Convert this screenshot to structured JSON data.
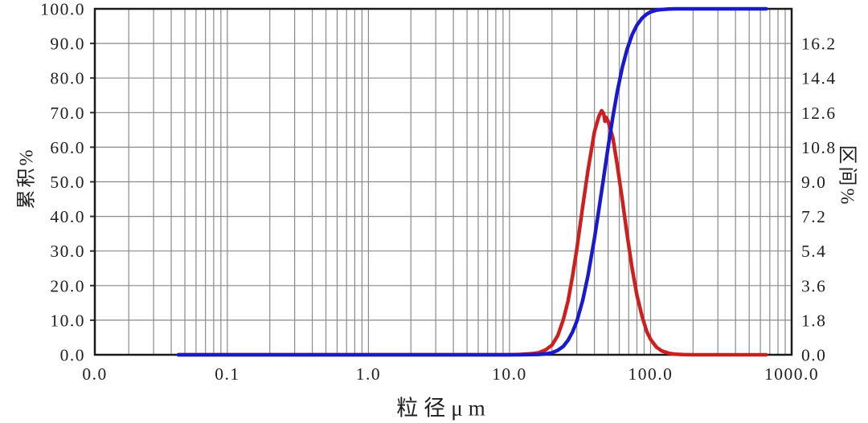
{
  "page": {
    "background": "#ffffff"
  },
  "chart_data": {
    "type": "line",
    "title": "",
    "xlabel": "粒径μm",
    "ylabel_left": "累积%",
    "ylabel_right": "区间%",
    "grid": true,
    "legend": "none",
    "x_axis": {
      "scale": "log",
      "min": 0.0115,
      "max": 1000,
      "tick_labels": [
        "0.0",
        "0.1",
        "1.0",
        "10.0",
        "100.0",
        "1000.0"
      ],
      "tick_values": [
        0.0115,
        0.1,
        1,
        10,
        100,
        1000
      ]
    },
    "y_left_axis": {
      "min": 0,
      "max": 100,
      "tick_labels": [
        "0.0",
        "10.0",
        "20.0",
        "30.0",
        "40.0",
        "50.0",
        "60.0",
        "70.0",
        "80.0",
        "90.0",
        "100.0"
      ],
      "tick_values": [
        0,
        10,
        20,
        30,
        40,
        50,
        60,
        70,
        80,
        90,
        100
      ]
    },
    "y_right_axis": {
      "min": 0,
      "max": 18,
      "tick_labels": [
        "0.0",
        "1.8",
        "3.6",
        "5.4",
        "7.2",
        "9.0",
        "10.8",
        "12.6",
        "14.4",
        "16.2"
      ],
      "tick_values": [
        0,
        1.8,
        3.6,
        5.4,
        7.2,
        9.0,
        10.8,
        12.6,
        14.4,
        16.2
      ]
    },
    "colors": {
      "grid": "#8a8a8a",
      "border": "#1a1a1a",
      "tick_text": "#1f1f1f"
    },
    "series": [
      {
        "name": "区间%",
        "role": "interval",
        "axis": "right",
        "color": "#cc2020",
        "points": [
          [
            0.045,
            0
          ],
          [
            0.1,
            0
          ],
          [
            0.5,
            0
          ],
          [
            1,
            0
          ],
          [
            2,
            0
          ],
          [
            5,
            0
          ],
          [
            8,
            0
          ],
          [
            10,
            0
          ],
          [
            12,
            0.02
          ],
          [
            14,
            0.05
          ],
          [
            16,
            0.1
          ],
          [
            18,
            0.25
          ],
          [
            20,
            0.5
          ],
          [
            22,
            1.0
          ],
          [
            24,
            1.8
          ],
          [
            26,
            2.8
          ],
          [
            28,
            4.1
          ],
          [
            30,
            5.5
          ],
          [
            33,
            7.7
          ],
          [
            36,
            9.6
          ],
          [
            40,
            11.6
          ],
          [
            43,
            12.4
          ],
          [
            45,
            12.7
          ],
          [
            46.5,
            12.55
          ],
          [
            47.5,
            12.15
          ],
          [
            48.5,
            12.35
          ],
          [
            50,
            12.15
          ],
          [
            54,
            11.3
          ],
          [
            58,
            9.9
          ],
          [
            63,
            8.1
          ],
          [
            68,
            6.3
          ],
          [
            74,
            4.5
          ],
          [
            80,
            3.1
          ],
          [
            87,
            2.0
          ],
          [
            94,
            1.2
          ],
          [
            100,
            0.8
          ],
          [
            110,
            0.4
          ],
          [
            120,
            0.2
          ],
          [
            135,
            0.08
          ],
          [
            150,
            0.03
          ],
          [
            170,
            0.01
          ],
          [
            200,
            0
          ],
          [
            300,
            0
          ],
          [
            450,
            0
          ],
          [
            660,
            0
          ]
        ]
      },
      {
        "name": "累积%",
        "role": "cumulative",
        "axis": "left",
        "color": "#1a1acc",
        "points": [
          [
            0.045,
            0
          ],
          [
            0.06,
            0
          ],
          [
            0.1,
            0
          ],
          [
            0.2,
            0
          ],
          [
            0.5,
            0
          ],
          [
            1,
            0
          ],
          [
            2,
            0
          ],
          [
            5,
            0
          ],
          [
            8,
            0
          ],
          [
            10,
            0
          ],
          [
            12,
            0
          ],
          [
            14,
            0.05
          ],
          [
            16,
            0.1
          ],
          [
            18,
            0.25
          ],
          [
            20,
            0.6
          ],
          [
            22,
            1.3
          ],
          [
            24,
            2.4
          ],
          [
            26,
            4.2
          ],
          [
            28,
            6.6
          ],
          [
            30,
            9.7
          ],
          [
            33,
            15.7
          ],
          [
            36,
            22.9
          ],
          [
            40,
            33.6
          ],
          [
            43,
            41.9
          ],
          [
            46,
            50.0
          ],
          [
            50,
            60.0
          ],
          [
            54,
            68.7
          ],
          [
            58,
            75.9
          ],
          [
            63,
            83.0
          ],
          [
            68,
            88.2
          ],
          [
            74,
            92.5
          ],
          [
            80,
            95.3
          ],
          [
            87,
            97.3
          ],
          [
            94,
            98.5
          ],
          [
            100,
            99.1
          ],
          [
            110,
            99.6
          ],
          [
            120,
            99.8
          ],
          [
            135,
            99.95
          ],
          [
            150,
            100
          ],
          [
            200,
            100
          ],
          [
            300,
            100
          ],
          [
            450,
            100
          ],
          [
            660,
            100
          ]
        ]
      }
    ]
  }
}
